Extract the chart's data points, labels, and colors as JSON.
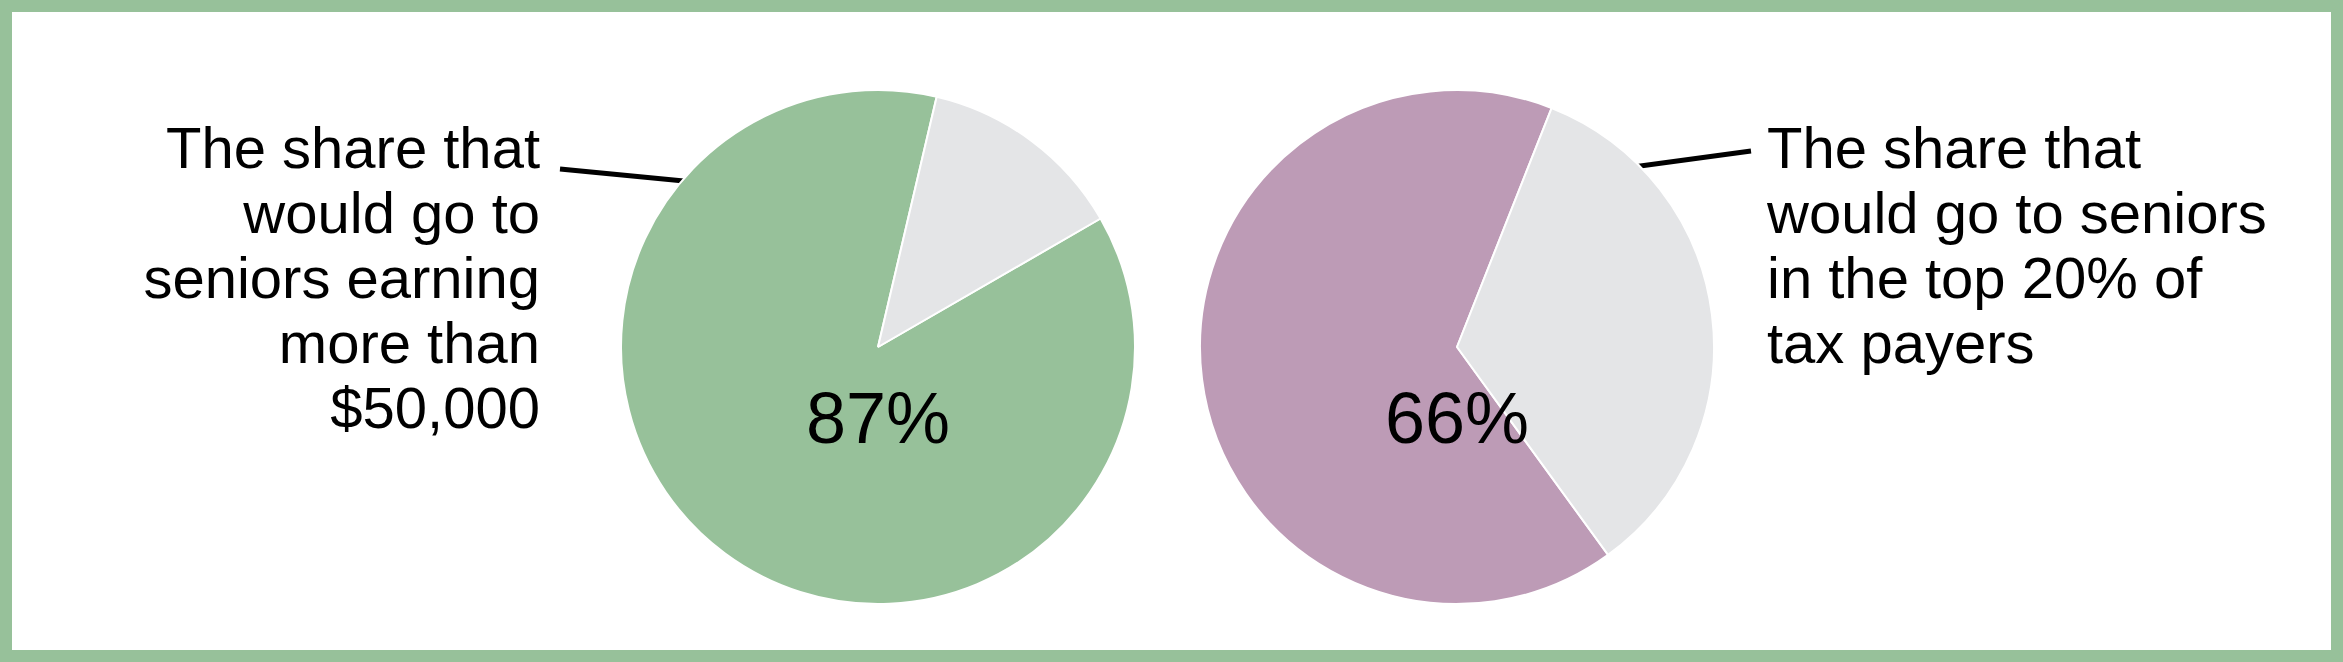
{
  "chart_data": [
    {
      "type": "pie",
      "categories": [
        null,
        null
      ],
      "values": [
        87,
        13
      ],
      "colors": [
        "#97c19a",
        "#e4e5e7"
      ],
      "value_labels": [
        "87%",
        null
      ],
      "annotations": [
        "The share that would go to seniors earning more than $50,000"
      ]
    },
    {
      "type": "pie",
      "categories": [
        null,
        null
      ],
      "values": [
        66,
        34
      ],
      "colors": [
        "#bd9bb6",
        "#e4e5e7"
      ],
      "value_labels": [
        "66%",
        null
      ],
      "annotations": [
        "The share that would go to seniors in the top 20% of tax payers"
      ]
    }
  ]
}
